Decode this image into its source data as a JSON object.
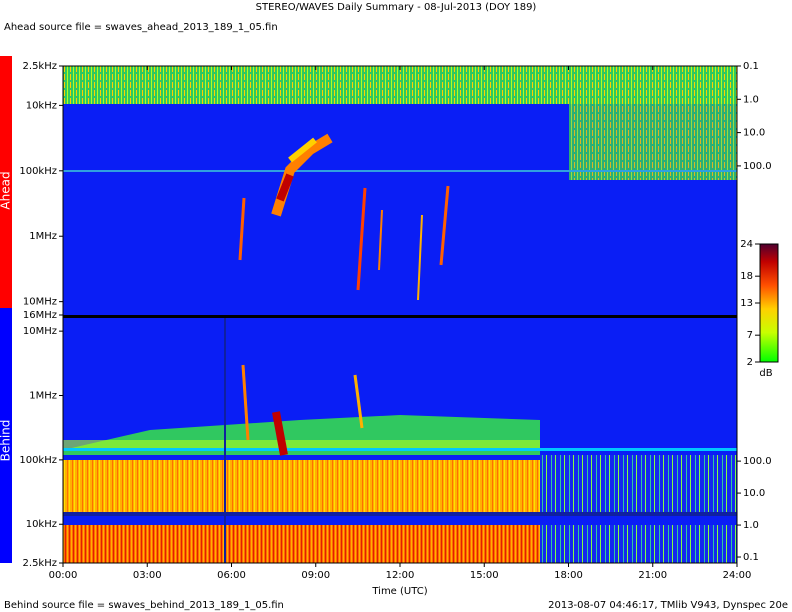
{
  "header": {
    "title": "STEREO/WAVES Daily Summary - 08-Jul-2013 (DOY 189)",
    "source": "Ahead source file = swaves_ahead_2013_189_1_05.fin"
  },
  "footer": {
    "source": "Behind source file = swaves_behind_2013_189_1_05.fin",
    "credit": "2013-08-07 04:46:17, TMlib V943, Dynspec 20e"
  },
  "chart_data": [
    {
      "type": "spectrogram",
      "label": "Ahead",
      "color": "#ff0000",
      "ylog": true,
      "ylim": [
        2.5,
        16000
      ],
      "yticks": [
        {
          "value": 2.5,
          "label": "2.5kHz"
        },
        {
          "value": 10,
          "label": "10kHz"
        },
        {
          "value": 100,
          "label": "100kHz"
        },
        {
          "value": 1000,
          "label": "1MHz"
        },
        {
          "value": 10000,
          "label": "10MHz"
        },
        {
          "value": 16000,
          "label": "16MHz"
        }
      ],
      "y2log": true,
      "y2lim": [
        0.1,
        3000000
      ],
      "y2ticks": [
        0.1,
        {
          "value": 1,
          "label": "1.0"
        },
        {
          "value": 10,
          "label": "10.0"
        },
        {
          "value": 100,
          "label": "100.0"
        }
      ]
    },
    {
      "type": "spectrogram",
      "label": "Behind",
      "color": "#0000ff",
      "ylog": true,
      "ylim": [
        2.5,
        16000
      ],
      "yticks": [
        {
          "value": 2.5,
          "label": "2.5kHz"
        },
        {
          "value": 10,
          "label": "10kHz"
        },
        {
          "value": 100,
          "label": "100kHz"
        },
        {
          "value": 1000,
          "label": "1MHz"
        },
        {
          "value": 10000,
          "label": "10MHz"
        }
      ],
      "y2log": true,
      "y2lim": [
        0.065,
        3000000
      ],
      "y2ticks": [
        0.1,
        {
          "value": 1,
          "label": "1.0"
        },
        {
          "value": 10,
          "label": "10.0"
        },
        {
          "value": 100,
          "label": "100.0"
        }
      ],
      "xlabel": "Time (UTC)",
      "xlim": [
        0,
        24
      ],
      "xticks": [
        {
          "value": 0,
          "label": "00:00"
        },
        {
          "value": 3,
          "label": "03:00"
        },
        {
          "value": 6,
          "label": "06:00"
        },
        {
          "value": 9,
          "label": "09:00"
        },
        {
          "value": 12,
          "label": "12:00"
        },
        {
          "value": 15,
          "label": "15:00"
        },
        {
          "value": 18,
          "label": "18:00"
        },
        {
          "value": 21,
          "label": "21:00"
        },
        {
          "value": 24,
          "label": "24:00"
        }
      ]
    },
    {
      "type": "colorbar",
      "label": "dB",
      "ylim": [
        2,
        24
      ],
      "yticks": [
        2,
        7,
        13,
        18,
        24
      ]
    }
  ]
}
